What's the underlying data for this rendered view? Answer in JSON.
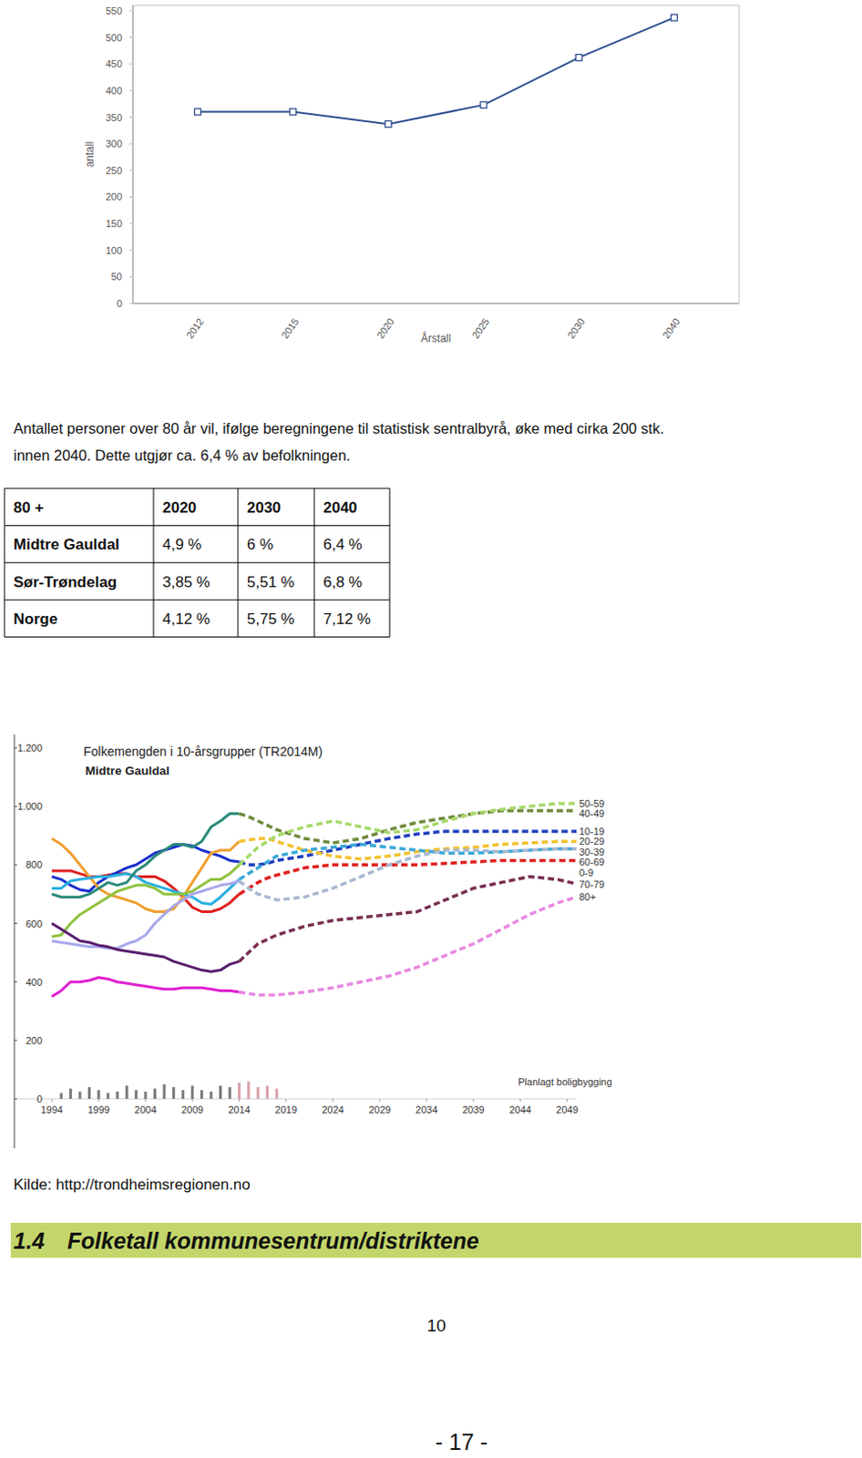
{
  "chart_data": [
    {
      "type": "line",
      "categories": [
        "2012",
        "2015",
        "2020",
        "2025",
        "2030",
        "2040"
      ],
      "values": [
        360,
        360,
        337,
        373,
        462,
        537
      ],
      "color": "#2f4f8f",
      "marker": "square",
      "xlabel": "Årstall",
      "ylabel": "antall",
      "ylim": [
        0,
        560
      ],
      "yticks": [
        0,
        50,
        100,
        150,
        200,
        250,
        300,
        350,
        400,
        450,
        500,
        550
      ],
      "grid": false
    },
    {
      "type": "line",
      "title": "Folkemengden i 10-årsgrupper (TR2014M)",
      "subtitle": "Midtre Gauldal",
      "annotations": [
        "Planlagt boligbygging"
      ],
      "x": [
        1994,
        1995,
        1996,
        1997,
        1998,
        1999,
        2000,
        2001,
        2002,
        2003,
        2004,
        2005,
        2006,
        2007,
        2008,
        2009,
        2010,
        2011,
        2012,
        2013,
        2014,
        2015,
        2016,
        2017,
        2018,
        2021,
        2024,
        2027,
        2030,
        2033,
        2036,
        2039,
        2042,
        2045,
        2048,
        2050
      ],
      "xlim": [
        1990,
        2050
      ],
      "xticks": [
        1994,
        1999,
        2004,
        2009,
        2014,
        2019,
        2024,
        2029,
        2034,
        2039,
        2044,
        2049
      ],
      "ylim": [
        0,
        1200
      ],
      "yticks": [
        0,
        200,
        400,
        600,
        800,
        {
          "value": 1000,
          "label": "1.000"
        },
        {
          "value": 1200,
          "label": "1.200"
        }
      ],
      "grid": false,
      "series": [
        {
          "type": "bar",
          "color": "#7a7a7a",
          "values": [
            null,
            20,
            35,
            25,
            40,
            30,
            20,
            25,
            45,
            30,
            25,
            35,
            50,
            40,
            30,
            45,
            30,
            25,
            45,
            40,
            null,
            null,
            null,
            null,
            null,
            null,
            null,
            null,
            null,
            null,
            null,
            null,
            null,
            null,
            null,
            null
          ]
        },
        {
          "type": "bar",
          "color": "#d9a0a8",
          "values": [
            null,
            null,
            null,
            null,
            null,
            null,
            null,
            null,
            null,
            null,
            null,
            null,
            null,
            null,
            null,
            null,
            null,
            null,
            null,
            null,
            55,
            60,
            40,
            45,
            35,
            null,
            null,
            null,
            null,
            null,
            null,
            null,
            null,
            null,
            null,
            null
          ]
        },
        {
          "line_style": "solid",
          "color": "#e02020",
          "values": [
            780,
            780,
            780,
            770,
            760,
            760,
            765,
            770,
            770,
            760,
            760,
            760,
            745,
            720,
            690,
            655,
            640,
            640,
            650,
            670,
            700,
            null,
            null,
            null,
            null,
            null,
            null,
            null,
            null,
            null,
            null,
            null,
            null,
            null,
            null,
            null
          ]
        },
        {
          "line_style": "solid",
          "color": "#1a2fcf",
          "values": [
            760,
            750,
            730,
            715,
            710,
            740,
            760,
            775,
            790,
            800,
            820,
            840,
            850,
            860,
            870,
            865,
            850,
            840,
            830,
            815,
            810,
            null,
            null,
            null,
            null,
            null,
            null,
            null,
            null,
            null,
            null,
            null,
            null,
            null,
            null,
            null
          ]
        },
        {
          "line_style": "solid",
          "color": "#f0a030",
          "values": [
            890,
            870,
            840,
            800,
            760,
            720,
            700,
            690,
            680,
            670,
            650,
            640,
            640,
            650,
            690,
            740,
            790,
            840,
            850,
            850,
            880,
            null,
            null,
            null,
            null,
            null,
            null,
            null,
            null,
            null,
            null,
            null,
            null,
            null,
            null,
            null
          ]
        },
        {
          "line_style": "solid",
          "color": "#2ab0e0",
          "values": [
            720,
            720,
            745,
            750,
            755,
            760,
            760,
            765,
            770,
            760,
            740,
            730,
            720,
            710,
            700,
            690,
            670,
            665,
            690,
            720,
            750,
            null,
            null,
            null,
            null,
            null,
            null,
            null,
            null,
            null,
            null,
            null,
            null,
            null,
            null,
            null
          ]
        },
        {
          "line_style": "solid",
          "color": "#2a8a7a",
          "values": [
            700,
            690,
            690,
            690,
            700,
            720,
            740,
            730,
            740,
            780,
            800,
            830,
            850,
            870,
            870,
            860,
            880,
            930,
            950,
            975,
            975,
            null,
            null,
            null,
            null,
            null,
            null,
            null,
            null,
            null,
            null,
            null,
            null,
            null,
            null,
            null
          ]
        },
        {
          "line_style": "solid",
          "color": "#8fc23f",
          "values": [
            555,
            560,
            600,
            630,
            650,
            670,
            690,
            710,
            720,
            730,
            730,
            720,
            700,
            700,
            700,
            710,
            730,
            750,
            750,
            770,
            800,
            null,
            null,
            null,
            null,
            null,
            null,
            null,
            null,
            null,
            null,
            null,
            null,
            null,
            null,
            null
          ]
        },
        {
          "line_style": "solid",
          "color": "#a8a8ec",
          "values": [
            540,
            535,
            530,
            525,
            520,
            520,
            515,
            515,
            530,
            540,
            560,
            600,
            630,
            660,
            680,
            700,
            710,
            720,
            730,
            735,
            745,
            null,
            null,
            null,
            null,
            null,
            null,
            null,
            null,
            null,
            null,
            null,
            null,
            null,
            null,
            null
          ]
        },
        {
          "line_style": "solid",
          "color": "#5a1e6e",
          "values": [
            600,
            580,
            560,
            540,
            535,
            525,
            520,
            510,
            505,
            500,
            495,
            490,
            485,
            470,
            460,
            450,
            440,
            435,
            440,
            460,
            470,
            null,
            null,
            null,
            null,
            null,
            null,
            null,
            null,
            null,
            null,
            null,
            null,
            null,
            null,
            null
          ]
        },
        {
          "line_style": "solid",
          "color": "#e020d0",
          "values": [
            350,
            370,
            400,
            400,
            405,
            415,
            410,
            400,
            395,
            390,
            385,
            380,
            375,
            375,
            380,
            380,
            380,
            375,
            370,
            370,
            365,
            null,
            null,
            null,
            null,
            null,
            null,
            null,
            null,
            null,
            null,
            null,
            null,
            null,
            null,
            null
          ]
        },
        {
          "name": "0-9",
          "line_style": "dashed",
          "color": "#e02020",
          "values": [
            null,
            null,
            null,
            null,
            null,
            null,
            null,
            null,
            null,
            null,
            null,
            null,
            null,
            null,
            null,
            null,
            null,
            null,
            null,
            null,
            700,
            720,
            740,
            755,
            765,
            790,
            800,
            800,
            800,
            800,
            805,
            810,
            815,
            815,
            815,
            815
          ]
        },
        {
          "name": "10-19",
          "line_style": "dashed",
          "color": "#1f3fbf",
          "values": [
            null,
            null,
            null,
            null,
            null,
            null,
            null,
            null,
            null,
            null,
            null,
            null,
            null,
            null,
            null,
            null,
            null,
            null,
            null,
            null,
            810,
            800,
            800,
            805,
            815,
            830,
            850,
            870,
            890,
            905,
            915,
            915,
            915,
            915,
            915,
            915
          ]
        },
        {
          "name": "20-29",
          "line_style": "dashed",
          "color": "#f2c12e",
          "values": [
            null,
            null,
            null,
            null,
            null,
            null,
            null,
            null,
            null,
            null,
            null,
            null,
            null,
            null,
            null,
            null,
            null,
            null,
            null,
            null,
            880,
            885,
            890,
            890,
            880,
            850,
            830,
            820,
            830,
            845,
            855,
            860,
            870,
            875,
            880,
            880
          ]
        },
        {
          "name": "30-39",
          "line_style": "dashed",
          "color": "#3aa8d8",
          "values": [
            null,
            null,
            null,
            null,
            null,
            null,
            null,
            null,
            null,
            null,
            null,
            null,
            null,
            null,
            null,
            null,
            null,
            null,
            null,
            null,
            750,
            770,
            790,
            810,
            830,
            850,
            860,
            870,
            860,
            850,
            840,
            840,
            845,
            850,
            855,
            855
          ]
        },
        {
          "name": "40-49",
          "line_style": "dashed",
          "color": "#6f8a3a",
          "values": [
            null,
            null,
            null,
            null,
            null,
            null,
            null,
            null,
            null,
            null,
            null,
            null,
            null,
            null,
            null,
            null,
            null,
            null,
            null,
            null,
            975,
            965,
            950,
            935,
            920,
            890,
            875,
            890,
            920,
            945,
            960,
            975,
            985,
            985,
            985,
            985
          ]
        },
        {
          "name": "50-59",
          "line_style": "dashed",
          "color": "#a6d96a",
          "values": [
            null,
            null,
            null,
            null,
            null,
            null,
            null,
            null,
            null,
            null,
            null,
            null,
            null,
            null,
            null,
            null,
            null,
            null,
            null,
            null,
            800,
            830,
            860,
            880,
            900,
            930,
            950,
            930,
            910,
            920,
            950,
            975,
            990,
            1000,
            1010,
            1010
          ]
        },
        {
          "name": "60-69",
          "line_style": "dashed",
          "color": "#a8b8d0",
          "values": [
            null,
            null,
            null,
            null,
            null,
            null,
            null,
            null,
            null,
            null,
            null,
            null,
            null,
            null,
            null,
            null,
            null,
            null,
            null,
            null,
            745,
            720,
            700,
            690,
            680,
            690,
            720,
            760,
            800,
            830,
            850,
            850,
            845,
            850,
            855,
            855
          ]
        },
        {
          "name": "70-79",
          "line_style": "dashed",
          "color": "#7a2e52",
          "values": [
            null,
            null,
            null,
            null,
            null,
            null,
            null,
            null,
            null,
            null,
            null,
            null,
            null,
            null,
            null,
            null,
            null,
            null,
            null,
            null,
            470,
            500,
            530,
            545,
            560,
            590,
            610,
            620,
            630,
            640,
            680,
            720,
            740,
            760,
            750,
            735
          ]
        },
        {
          "name": "80+",
          "line_style": "dashed",
          "color": "#e888e0",
          "values": [
            null,
            null,
            null,
            null,
            null,
            null,
            null,
            null,
            null,
            null,
            null,
            null,
            null,
            null,
            null,
            null,
            null,
            null,
            null,
            null,
            365,
            360,
            355,
            355,
            355,
            365,
            380,
            400,
            420,
            450,
            490,
            530,
            580,
            630,
            670,
            690
          ]
        }
      ]
    }
  ],
  "paragraph": [
    "Antallet personer over 80 år vil, ifølge beregningene til statistisk sentralbyrå, øke med cirka 200 stk.",
    "innen 2040. Dette utgjør ca. 6,4 % av befolkningen."
  ],
  "table": {
    "header": [
      "80 +",
      "2020",
      "2030",
      "2040"
    ],
    "rows": [
      [
        "Midtre Gauldal",
        "4,9 %",
        "6 %",
        "6,4 %"
      ],
      [
        "Sør-Trøndelag",
        "3,85 %",
        "5,51 %",
        "6,8 %"
      ],
      [
        "Norge",
        "4,12 %",
        "5,75 %",
        "7,12 %"
      ]
    ]
  },
  "source": "Kilde: http://trondheimsregionen.no",
  "heading": {
    "number": "1.4",
    "title": "Folketall kommunesentrum/distriktene"
  },
  "page_number": "10",
  "footer": "- 17 -"
}
